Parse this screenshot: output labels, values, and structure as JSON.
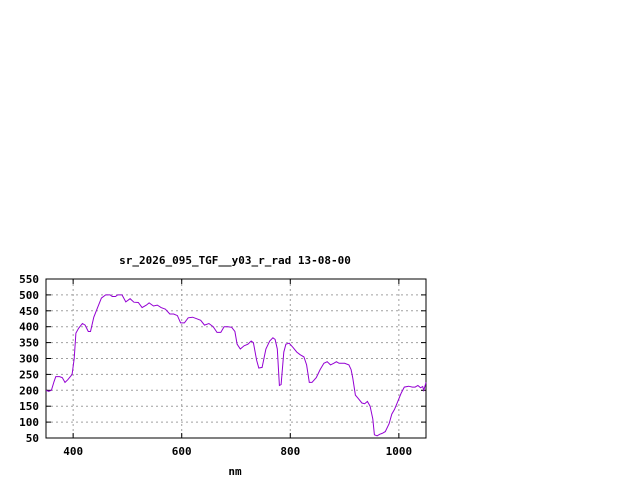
{
  "chart_data": {
    "type": "line",
    "title": "sr_2026_095_TGF__y03_r_rad 13-08-00",
    "xlabel": "nm",
    "ylabel": "",
    "xlim": [
      350,
      1050
    ],
    "ylim": [
      50,
      550
    ],
    "xticks": [
      400,
      600,
      800,
      1000
    ],
    "yticks": [
      50,
      100,
      150,
      200,
      250,
      300,
      350,
      400,
      450,
      500,
      550
    ],
    "grid": true,
    "line_color": "#9400d3",
    "series": [
      {
        "x": [
          350,
          355,
          360,
          365,
          368,
          375,
          380,
          385,
          390,
          398,
          402,
          405,
          410,
          417,
          422,
          428,
          432,
          438,
          445,
          452,
          460,
          468,
          472,
          478,
          482,
          490,
          497,
          505,
          512,
          520,
          527,
          535,
          540,
          548,
          555,
          562,
          570,
          578,
          585,
          592,
          598,
          605,
          612,
          620,
          628,
          635,
          642,
          650,
          658,
          665,
          672,
          678,
          685,
          692,
          698,
          702,
          708,
          715,
          722,
          728,
          732,
          738,
          742,
          748,
          755,
          762,
          768,
          772,
          776,
          780,
          783,
          788,
          792,
          798,
          805,
          812,
          818,
          825,
          830,
          835,
          840,
          848,
          855,
          862,
          868,
          874,
          880,
          885,
          890,
          900,
          908,
          912,
          915,
          920,
          925,
          932,
          937,
          942,
          947,
          952,
          955,
          960,
          965,
          970,
          975,
          982,
          987,
          992,
          998,
          1004,
          1010,
          1018,
          1025,
          1030,
          1035,
          1040,
          1044,
          1046,
          1050
        ],
        "y": [
          200,
          197,
          200,
          228,
          243,
          243,
          240,
          225,
          233,
          250,
          300,
          380,
          395,
          410,
          405,
          385,
          385,
          430,
          460,
          490,
          500,
          500,
          495,
          495,
          500,
          500,
          478,
          488,
          477,
          476,
          460,
          468,
          475,
          465,
          468,
          460,
          455,
          440,
          440,
          435,
          412,
          412,
          428,
          430,
          425,
          420,
          405,
          410,
          400,
          382,
          382,
          400,
          400,
          398,
          385,
          345,
          330,
          340,
          345,
          355,
          350,
          295,
          270,
          272,
          330,
          355,
          365,
          360,
          330,
          215,
          218,
          320,
          345,
          348,
          335,
          320,
          312,
          305,
          280,
          225,
          225,
          240,
          265,
          285,
          290,
          280,
          285,
          290,
          285,
          285,
          280,
          265,
          240,
          185,
          175,
          160,
          158,
          165,
          150,
          110,
          60,
          57,
          62,
          65,
          70,
          95,
          125,
          140,
          165,
          190,
          210,
          213,
          210,
          210,
          215,
          208,
          212,
          200,
          225
        ]
      }
    ]
  }
}
